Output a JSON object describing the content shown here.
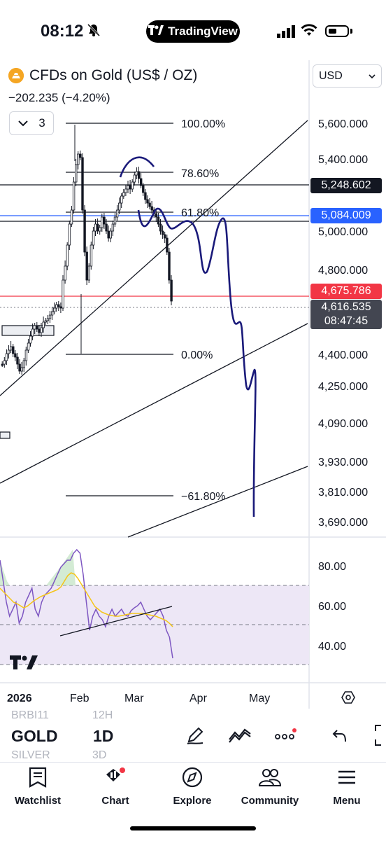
{
  "status_bar": {
    "time": "08:12",
    "brand": "TradingView"
  },
  "header": {
    "symbol_title": "CFDs on Gold (US$ / OZ)",
    "change": "−202.235 (−4.20%)",
    "collapse_count": "3",
    "currency": "USD"
  },
  "price_axis": {
    "ticks": [
      "5,600.000",
      "5,400.000",
      "5,000.000",
      "4,800.000",
      "4,400.000",
      "4,250.000",
      "4,090.000",
      "3,930.000",
      "3,810.000",
      "3,690.000"
    ],
    "tags": [
      {
        "value": "5,248.602",
        "color": "#131722"
      },
      {
        "value": "5,084.009",
        "color": "#2962ff"
      },
      {
        "value": "4,675.786",
        "color": "#f23645"
      }
    ],
    "last_price": "4,616.535",
    "countdown": "08:47:45"
  },
  "fib_levels": [
    "100.00%",
    "78.60%",
    "61.80%",
    "0.00%",
    "−61.80%"
  ],
  "rsi_axis": {
    "ticks": [
      "80.00",
      "60.00",
      "40.00"
    ]
  },
  "time_axis": {
    "labels": [
      "2026",
      "Feb",
      "Mar",
      "Apr",
      "May"
    ]
  },
  "symbol_bar": {
    "symbol": "GOLD",
    "timeframe": "1D",
    "ghost_above_symbol": "BRBI11",
    "ghost_above_tf": "12H",
    "ghost_below_symbol": "SILVER",
    "ghost_below_tf": "3D"
  },
  "tabs": [
    {
      "label": "Watchlist",
      "icon": "watchlist-icon"
    },
    {
      "label": "Chart",
      "icon": "chart-icon"
    },
    {
      "label": "Explore",
      "icon": "compass-icon"
    },
    {
      "label": "Community",
      "icon": "community-icon"
    },
    {
      "label": "Menu",
      "icon": "menu-icon"
    }
  ],
  "colors": {
    "hline_blue": "#2962ff",
    "hline_red": "#f23645",
    "drawing": "#1a1a7a",
    "rsi_line": "#7e57c2",
    "rsi_ma": "#f5c518",
    "rsi_band": "#ede7f6"
  }
}
